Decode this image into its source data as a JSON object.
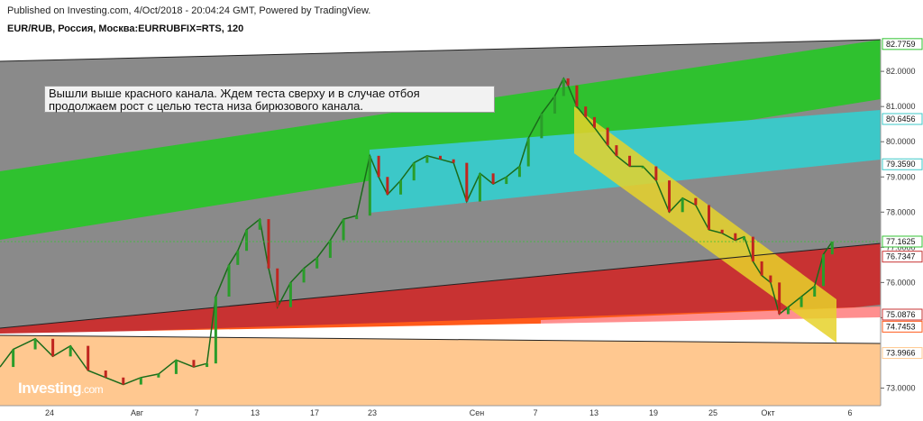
{
  "header": {
    "published": "Published on Investing.com, 4/Oct/2018 - 20:04:24 GMT, Powered by TradingView.",
    "symbol": "EUR/RUB, Россия, Москва:EURRUBFIX=RTS, 120"
  },
  "annotation": {
    "line1": "Вышли выше красного канала. Ждем теста сверху и в случае отбоя",
    "line2": "продолжаем рост с целью теста низа бирюзового канала."
  },
  "logo": {
    "name": "Investing",
    "suffix": ".com"
  },
  "chart_data": {
    "type": "line",
    "x_tick_labels": [
      "24",
      "Авг",
      "7",
      "13",
      "17",
      "23",
      "Сен",
      "7",
      "13",
      "19",
      "25",
      "Окт",
      "6"
    ],
    "y_tick_labels": [
      "82.0000",
      "81.0000",
      "80.0000",
      "79.0000",
      "78.0000",
      "77.0000",
      "76.0000",
      "75.0000",
      "73.0000"
    ],
    "ylim": [
      72.5,
      82.9
    ],
    "price_labels": [
      "82.7759",
      "80.6456",
      "79.3590",
      "77.1625",
      "76.7347",
      "75.0876",
      "74.7453",
      "73.9966"
    ],
    "last_price": 77.1625,
    "colors": {
      "green_channel": "#2fc12f",
      "turquoise_channel": "#3cc8c8",
      "red_channel": "#c83232",
      "orange_channel": "#ff5a1a",
      "peach_zone": "#ffc890",
      "yellow_channel": "#e6d22a",
      "background_gray": "#8a8a8a",
      "candle_up": "#2a9d2a",
      "candle_down": "#c0251f"
    },
    "price_path": [
      [
        0,
        73.6
      ],
      [
        0.015,
        74.1
      ],
      [
        0.04,
        74.4
      ],
      [
        0.06,
        73.9
      ],
      [
        0.08,
        74.2
      ],
      [
        0.1,
        73.5
      ],
      [
        0.12,
        73.3
      ],
      [
        0.14,
        73.1
      ],
      [
        0.16,
        73.3
      ],
      [
        0.18,
        73.4
      ],
      [
        0.2,
        73.8
      ],
      [
        0.22,
        73.6
      ],
      [
        0.235,
        73.7
      ],
      [
        0.245,
        75.6
      ],
      [
        0.26,
        76.5
      ],
      [
        0.27,
        76.9
      ],
      [
        0.28,
        77.5
      ],
      [
        0.295,
        77.8
      ],
      [
        0.305,
        76.4
      ],
      [
        0.315,
        75.3
      ],
      [
        0.33,
        76.0
      ],
      [
        0.345,
        76.4
      ],
      [
        0.36,
        76.7
      ],
      [
        0.375,
        77.2
      ],
      [
        0.39,
        77.8
      ],
      [
        0.405,
        77.9
      ],
      [
        0.42,
        79.6
      ],
      [
        0.43,
        79.0
      ],
      [
        0.44,
        78.5
      ],
      [
        0.455,
        78.9
      ],
      [
        0.47,
        79.4
      ],
      [
        0.485,
        79.6
      ],
      [
        0.5,
        79.5
      ],
      [
        0.515,
        79.4
      ],
      [
        0.53,
        78.3
      ],
      [
        0.545,
        79.1
      ],
      [
        0.56,
        78.8
      ],
      [
        0.575,
        79.0
      ],
      [
        0.59,
        79.3
      ],
      [
        0.6,
        80.1
      ],
      [
        0.615,
        80.8
      ],
      [
        0.63,
        81.3
      ],
      [
        0.64,
        81.8
      ],
      [
        0.645,
        81.6
      ],
      [
        0.655,
        81.0
      ],
      [
        0.665,
        80.7
      ],
      [
        0.675,
        80.4
      ],
      [
        0.69,
        79.9
      ],
      [
        0.7,
        79.6
      ],
      [
        0.715,
        79.3
      ],
      [
        0.73,
        79.3
      ],
      [
        0.745,
        78.9
      ],
      [
        0.76,
        78.0
      ],
      [
        0.775,
        78.4
      ],
      [
        0.79,
        78.2
      ],
      [
        0.805,
        77.5
      ],
      [
        0.82,
        77.4
      ],
      [
        0.835,
        77.2
      ],
      [
        0.845,
        77.3
      ],
      [
        0.855,
        76.6
      ],
      [
        0.865,
        76.2
      ],
      [
        0.875,
        76.0
      ],
      [
        0.885,
        75.1
      ],
      [
        0.895,
        75.3
      ],
      [
        0.91,
        75.6
      ],
      [
        0.925,
        75.9
      ],
      [
        0.935,
        76.8
      ],
      [
        0.945,
        77.16
      ]
    ]
  }
}
